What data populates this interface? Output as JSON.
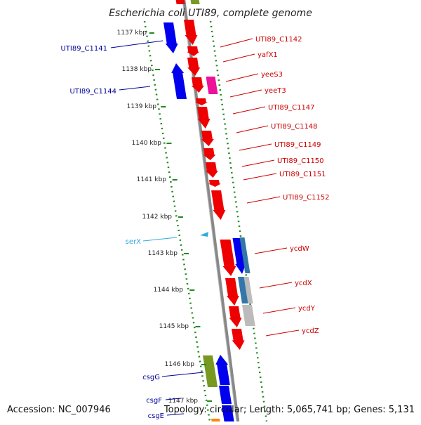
{
  "title": "Escherichia coli UTI89, complete genome",
  "accession": "Accession: NC_007946",
  "stats": "Topology: circular; Length: 5,065,741 bp; Genes: 5,131",
  "colors": {
    "forward": "#0000ee",
    "reverse": "#ee0000",
    "pink": "#ee1199",
    "green": "#779922",
    "steel": "#3377aa",
    "gray": "#bbbbbb",
    "cyan": "#33aadd",
    "orange": "#ff8800",
    "label_blue": "#000099",
    "label_red": "#cc0000",
    "label_cyan": "#33aadd",
    "tick": "#228822",
    "axis": "#888888"
  },
  "ticks": [
    "1137 kbp",
    "1138 kbp",
    "1139 kbp",
    "1140 kbp",
    "1141 kbp",
    "1142 kbp",
    "1143 kbp",
    "1144 kbp",
    "1145 kbp",
    "1146 kbp",
    "1147 kbp"
  ],
  "genes": {
    "left": [
      {
        "label": "UTI89_C1141"
      },
      {
        "label": "UTI89_C1144"
      },
      {
        "label": "serX"
      },
      {
        "label": "csgG"
      },
      {
        "label": "csgF"
      },
      {
        "label": "csgE"
      }
    ],
    "right": [
      {
        "label": "UTI89_C1142"
      },
      {
        "label": "yafX1"
      },
      {
        "label": "yeeS3"
      },
      {
        "label": "yeeT3"
      },
      {
        "label": "UTI89_C1147"
      },
      {
        "label": "UTI89_C1148"
      },
      {
        "label": "UTI89_C1149"
      },
      {
        "label": "UTI89_C1150"
      },
      {
        "label": "UTI89_C1151"
      },
      {
        "label": "UTI89_C1152"
      },
      {
        "label": "ycdW"
      },
      {
        "label": "ycdX"
      },
      {
        "label": "ycdY"
      },
      {
        "label": "ycdZ"
      }
    ]
  }
}
